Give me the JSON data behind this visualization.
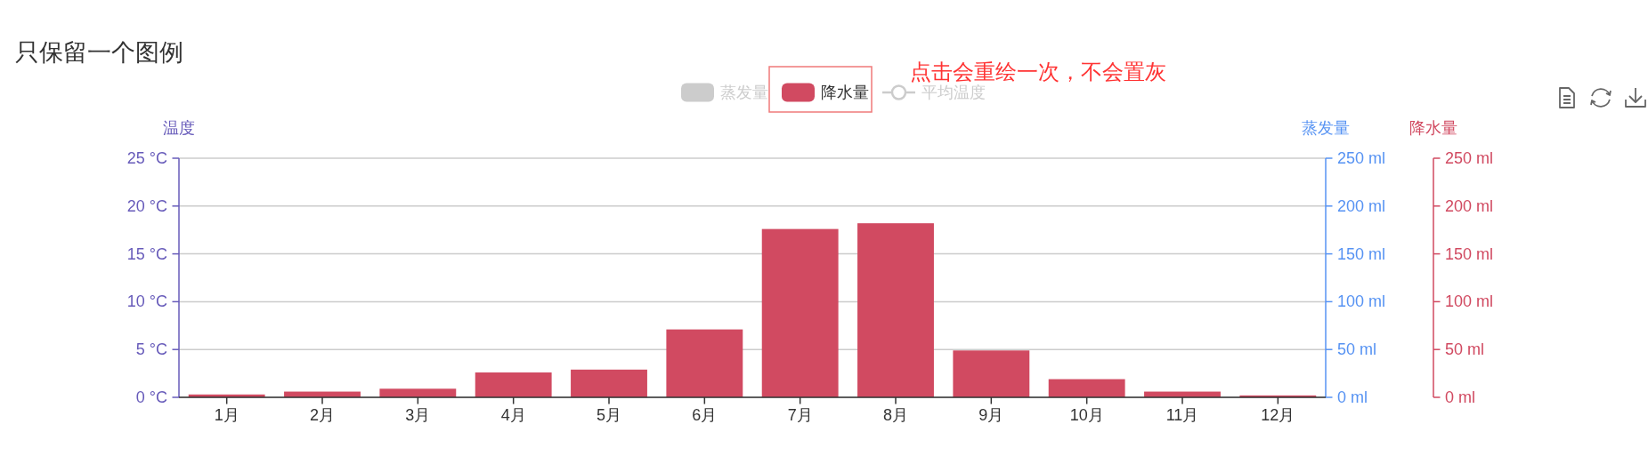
{
  "chart_data": {
    "type": "bar",
    "title": "只保留一个图例",
    "categories": [
      "1月",
      "2月",
      "3月",
      "4月",
      "5月",
      "6月",
      "7月",
      "8月",
      "9月",
      "10月",
      "11月",
      "12月"
    ],
    "series": [
      {
        "name": "蒸发量",
        "color": "#cccccc",
        "values": [
          null,
          null,
          null,
          null,
          null,
          null,
          null,
          null,
          null,
          null,
          null,
          null
        ]
      },
      {
        "name": "降水量",
        "axis": "y3",
        "color": "#d14a61",
        "values": [
          3,
          6,
          9,
          26,
          29,
          71,
          176,
          182,
          49,
          19,
          6,
          2
        ]
      },
      {
        "name": "平均温度",
        "type": "line",
        "color": "#cccccc",
        "marker": "circle",
        "values": [
          null,
          null,
          null,
          null,
          null,
          null,
          null,
          null,
          null,
          null,
          null,
          null
        ]
      }
    ],
    "ylabel": "温度",
    "y2label": "蒸发量",
    "y3label": "降水量",
    "ylim": [
      0,
      25
    ],
    "yticks": [
      {
        "value": 0,
        "label": "0 °C"
      },
      {
        "value": 5,
        "label": "5 °C"
      },
      {
        "value": 10,
        "label": "10 °C"
      },
      {
        "value": 15,
        "label": "15 °C"
      },
      {
        "value": 20,
        "label": "20 °C"
      },
      {
        "value": 25,
        "label": "25 °C"
      }
    ],
    "y2lim": [
      0,
      250
    ],
    "y2ticks": [
      {
        "value": 0,
        "label": "0 ml"
      },
      {
        "value": 50,
        "label": "50 ml"
      },
      {
        "value": 100,
        "label": "100 ml"
      },
      {
        "value": 150,
        "label": "150 ml"
      },
      {
        "value": 200,
        "label": "200 ml"
      },
      {
        "value": 250,
        "label": "250 ml"
      }
    ],
    "y3lim": [
      0,
      250
    ],
    "y3ticks": [
      {
        "value": 0,
        "label": "0 ml"
      },
      {
        "value": 50,
        "label": "50 ml"
      },
      {
        "value": 100,
        "label": "100 ml"
      },
      {
        "value": 150,
        "label": "150 ml"
      },
      {
        "value": 200,
        "label": "200 ml"
      },
      {
        "value": 250,
        "label": "250 ml"
      }
    ],
    "grid": "y",
    "legend": "top",
    "annotations": [
      "点击会重绘一次，不会置灰"
    ]
  }
}
